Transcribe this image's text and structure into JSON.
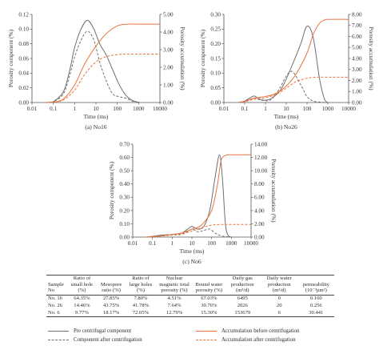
{
  "colors": {
    "pre_component": "#6f6f6f",
    "after_component": "#6f6f6f",
    "acc_before": "#e8733e",
    "acc_after": "#e8733e"
  },
  "chart_data": [
    {
      "type": "line",
      "caption": "(a) No16",
      "xlabel": "Time (ms)",
      "ylabel_left": "Porosity component (%)",
      "ylabel_right": "Porosity accumulation (%)",
      "x_scale": "log",
      "xlim": [
        0.01,
        10000
      ],
      "x_ticks": [
        "0.01",
        "0.1",
        "1",
        "10",
        "100",
        "1000",
        "10000"
      ],
      "ylim_left": [
        0,
        0.12
      ],
      "ylim_right": [
        0,
        5.0
      ],
      "y_ticks_left": [
        "0.00",
        "0.02",
        "0.04",
        "0.06",
        "0.08",
        "0.10",
        "0.12"
      ],
      "y_ticks_right": [
        "0.00",
        "1.00",
        "2.00",
        "3.00",
        "4.00",
        "5.00"
      ],
      "series": [
        {
          "key": "pre",
          "axis": "left",
          "x": [
            0.05,
            0.1,
            0.3,
            0.6,
            1,
            2,
            4,
            8,
            15,
            30,
            60,
            120,
            250,
            500,
            800,
            1200
          ],
          "y": [
            0,
            0.001,
            0.015,
            0.045,
            0.075,
            0.1,
            0.112,
            0.1,
            0.08,
            0.065,
            0.045,
            0.025,
            0.01,
            0.003,
            0.001,
            0
          ]
        },
        {
          "key": "after",
          "axis": "left",
          "x": [
            0.05,
            0.1,
            0.3,
            0.6,
            1,
            2,
            4,
            8,
            15,
            30,
            60,
            120,
            250,
            500,
            800
          ],
          "y": [
            0,
            0.001,
            0.012,
            0.038,
            0.062,
            0.085,
            0.097,
            0.085,
            0.055,
            0.03,
            0.012,
            0.008,
            0.006,
            0.002,
            0
          ]
        },
        {
          "key": "acc_before",
          "axis": "right",
          "x": [
            0.05,
            0.1,
            0.3,
            1,
            3,
            10,
            30,
            100,
            300,
            1000,
            10000
          ],
          "y": [
            0,
            0.02,
            0.2,
            1.0,
            2.2,
            3.2,
            3.9,
            4.35,
            4.45,
            4.45,
            4.45
          ]
        },
        {
          "key": "acc_after",
          "axis": "right",
          "x": [
            0.05,
            0.1,
            0.3,
            1,
            3,
            10,
            30,
            100,
            300,
            1000,
            10000
          ],
          "y": [
            0,
            0.02,
            0.15,
            0.7,
            1.6,
            2.3,
            2.6,
            2.72,
            2.75,
            2.75,
            2.75
          ]
        }
      ]
    },
    {
      "type": "line",
      "caption": "(b) No26",
      "xlabel": "Time (ms)",
      "ylabel_left": "Porosity component (%)",
      "ylabel_right": "Porosity accumulation (%)",
      "x_scale": "log",
      "xlim": [
        0.01,
        10000
      ],
      "x_ticks": [
        "0.01",
        "0.1",
        "1",
        "10",
        "100",
        "1000",
        "10000"
      ],
      "ylim_left": [
        0,
        0.3
      ],
      "ylim_right": [
        0,
        8.0
      ],
      "y_ticks_left": [
        "0.00",
        "0.05",
        "0.10",
        "0.15",
        "0.20",
        "0.25",
        "0.30"
      ],
      "y_ticks_right": [
        "0.00",
        "1.00",
        "2.00",
        "3.00",
        "4.00",
        "5.00",
        "6.00",
        "7.00",
        "8.00"
      ],
      "series": [
        {
          "key": "pre",
          "axis": "left",
          "x": [
            0.05,
            0.1,
            0.2,
            0.3,
            0.5,
            1,
            2,
            5,
            10,
            20,
            50,
            100,
            200,
            400,
            700,
            1000
          ],
          "y": [
            0,
            0.005,
            0.018,
            0.022,
            0.012,
            0.008,
            0.015,
            0.04,
            0.08,
            0.13,
            0.2,
            0.26,
            0.22,
            0.08,
            0.01,
            0
          ]
        },
        {
          "key": "after",
          "axis": "left",
          "x": [
            0.05,
            0.1,
            0.2,
            0.3,
            0.5,
            1,
            2,
            5,
            10,
            20,
            50,
            100,
            200,
            500,
            1000
          ],
          "y": [
            0,
            0.004,
            0.012,
            0.015,
            0.01,
            0.006,
            0.012,
            0.05,
            0.09,
            0.105,
            0.06,
            0.02,
            0.005,
            0.001,
            0
          ]
        },
        {
          "key": "acc_before",
          "axis": "right",
          "x": [
            0.05,
            0.1,
            0.3,
            1,
            3,
            10,
            30,
            100,
            200,
            400,
            700,
            1000,
            10000
          ],
          "y": [
            0,
            0.1,
            0.4,
            0.55,
            0.8,
            1.5,
            2.6,
            4.5,
            6.2,
            7.2,
            7.5,
            7.55,
            7.55
          ]
        },
        {
          "key": "acc_after",
          "axis": "right",
          "x": [
            0.05,
            0.1,
            0.3,
            1,
            3,
            10,
            30,
            100,
            300,
            1000,
            10000
          ],
          "y": [
            0,
            0.08,
            0.3,
            0.45,
            0.7,
            1.3,
            1.9,
            2.2,
            2.3,
            2.3,
            2.3
          ]
        }
      ]
    },
    {
      "type": "line",
      "caption": "(c) No6",
      "xlabel": "Time (ms)",
      "ylabel_left": "Porosity component (%)",
      "ylabel_right": "Porosity accumulation (%)",
      "x_scale": "log",
      "xlim": [
        0.01,
        10000
      ],
      "x_ticks": [
        "0.01",
        "0.1",
        "1",
        "10",
        "100",
        "1000",
        "10000"
      ],
      "ylim_left": [
        0,
        0.7
      ],
      "ylim_right": [
        0,
        14.0
      ],
      "y_ticks_left": [
        "0.00",
        "0.10",
        "0.20",
        "0.30",
        "0.40",
        "0.50",
        "0.60",
        "0.70"
      ],
      "y_ticks_right": [
        "0.00",
        "2.00",
        "4.00",
        "6.00",
        "8.00",
        "10.00",
        "12.00",
        "14.00"
      ],
      "series": [
        {
          "key": "pre",
          "axis": "left",
          "x": [
            0.05,
            0.1,
            0.3,
            1,
            3,
            6,
            10,
            20,
            40,
            80,
            150,
            250,
            350,
            500,
            700,
            1000
          ],
          "y": [
            0,
            0.005,
            0.015,
            0.02,
            0.03,
            0.06,
            0.08,
            0.06,
            0.08,
            0.2,
            0.45,
            0.62,
            0.45,
            0.1,
            0.01,
            0
          ]
        },
        {
          "key": "after",
          "axis": "left",
          "x": [
            0.05,
            0.1,
            0.3,
            1,
            3,
            6,
            10,
            20,
            40,
            80,
            150,
            300,
            600,
            1000
          ],
          "y": [
            0,
            0.004,
            0.01,
            0.015,
            0.02,
            0.04,
            0.06,
            0.04,
            0.05,
            0.06,
            0.03,
            0.01,
            0.002,
            0
          ]
        },
        {
          "key": "acc_before",
          "axis": "right",
          "x": [
            0.05,
            0.1,
            0.3,
            1,
            3,
            10,
            30,
            100,
            200,
            300,
            500,
            1000,
            10000
          ],
          "y": [
            0,
            0.05,
            0.2,
            0.4,
            0.6,
            1.2,
            1.8,
            4.0,
            8.0,
            11.5,
            12.3,
            12.4,
            12.4
          ]
        },
        {
          "key": "acc_after",
          "axis": "right",
          "x": [
            0.05,
            0.1,
            0.3,
            1,
            3,
            10,
            30,
            100,
            300,
            1000,
            10000
          ],
          "y": [
            0,
            0.04,
            0.15,
            0.3,
            0.5,
            0.9,
            1.4,
            1.8,
            1.9,
            1.9,
            1.9
          ]
        }
      ]
    },
    {
      "type": "table",
      "headers": [
        "Sample No",
        "Ratio of small hole (%)",
        "Mesopore ratio (%)",
        "Ratio of large holes (%)",
        "Nuclear magnetic total porosity (%)",
        "Bound water porosity (%)",
        "Daily gas production (m³/d)",
        "Daily water production (m³/d)",
        "permeability (10⁻³μm²)"
      ],
      "rows": [
        [
          "No. 16",
          "64.35%",
          "27.85%",
          "7.80%",
          "4.51%",
          "67.03%",
          "6495",
          "0",
          "0.160"
        ],
        [
          "No. 26",
          "14.46%",
          "43.75%",
          "41.78%",
          "7.64%",
          "30.76%",
          "2026",
          "20",
          "0.256"
        ],
        [
          "No. 6",
          "9.77%",
          "18.17%",
          "72.05%",
          "12.79%",
          "15.30%",
          "153679",
          "6",
          "30.441"
        ]
      ]
    }
  ],
  "legend": {
    "pre": "Pre centrifugal component",
    "after": "Component after centrifugation",
    "acc_before": "Accumulation before centrifugation",
    "acc_after": "Accumulation after centrifugation"
  }
}
